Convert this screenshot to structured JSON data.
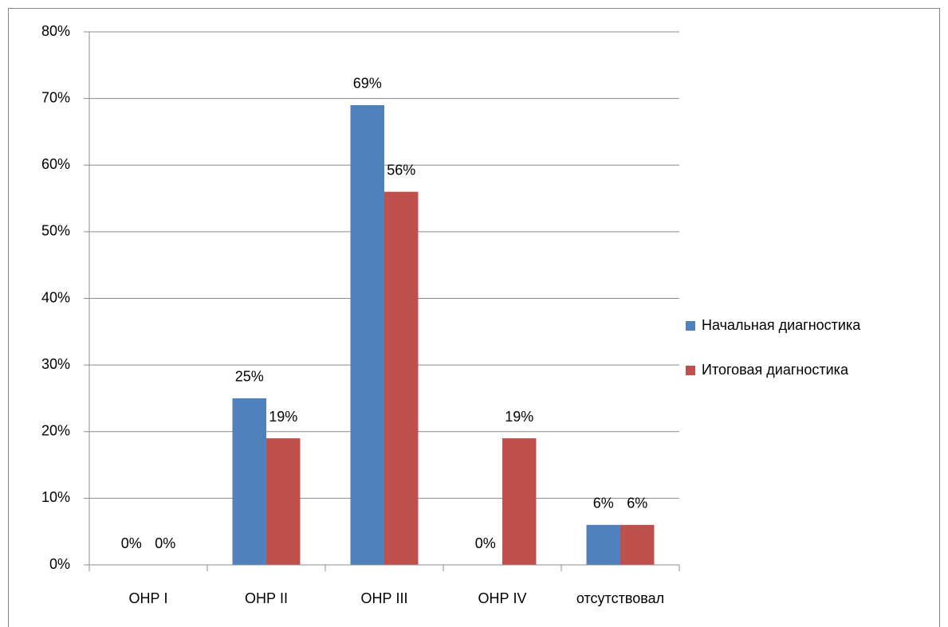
{
  "chart_data": {
    "type": "bar",
    "categories": [
      "ОНР I",
      "ОНР II",
      "ОНР III",
      "ОНР IV",
      "отсутствовал"
    ],
    "series": [
      {
        "name": "Начальная диагностика",
        "color": "#4f81bd",
        "values": [
          0,
          25,
          69,
          0,
          6
        ],
        "value_labels": [
          "0%",
          "25%",
          "69%",
          "0%",
          "6%"
        ]
      },
      {
        "name": "Итоговая диагностика",
        "color": "#c0504d",
        "values": [
          0,
          19,
          56,
          19,
          6
        ],
        "value_labels": [
          "0%",
          "19%",
          "56%",
          "19%",
          "6%"
        ]
      }
    ],
    "ylim": [
      0,
      80
    ],
    "yticks": [
      {
        "value": 0,
        "label": "0%"
      },
      {
        "value": 10,
        "label": "10%"
      },
      {
        "value": 20,
        "label": "20%"
      },
      {
        "value": 30,
        "label": "30%"
      },
      {
        "value": 40,
        "label": "40%"
      },
      {
        "value": 50,
        "label": "50%"
      },
      {
        "value": 60,
        "label": "60%"
      },
      {
        "value": 70,
        "label": "70%"
      },
      {
        "value": 80,
        "label": "80%"
      }
    ],
    "grid": true,
    "legend": "right"
  }
}
